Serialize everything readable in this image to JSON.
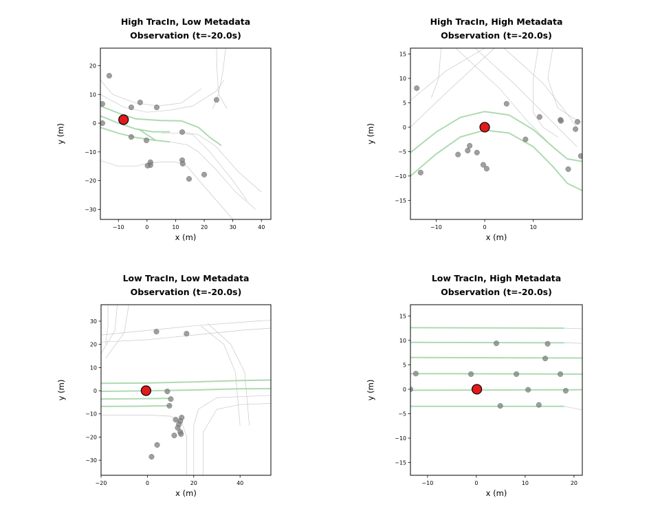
{
  "colors": {
    "ego": "#e31a1c",
    "agent": "#7f7f7f",
    "lane_green": "#9fd4a3",
    "map_line": "#c8c8c8"
  },
  "chart_data": [
    {
      "type": "scatter",
      "title": "High TracIn, Low Metadata\nObservation (t=-20.0s)",
      "xlabel": "x (m)",
      "ylabel": "y (m)",
      "xlim": [
        -16.3,
        43.3
      ],
      "ylim": [
        -33.5,
        26.1
      ],
      "xticks": [
        -10,
        0,
        10,
        20,
        30,
        40
      ],
      "yticks": [
        -30,
        -20,
        -10,
        0,
        10,
        20
      ],
      "ego": [
        -8.2,
        1.2
      ],
      "agents": [
        [
          -13.2,
          16.5
        ],
        [
          -15.6,
          6.7
        ],
        [
          -15.6,
          0
        ],
        [
          -5.5,
          5.5
        ],
        [
          -2.4,
          7.2
        ],
        [
          3.4,
          5.5
        ],
        [
          24.3,
          8.1
        ],
        [
          -5.5,
          -4.8
        ],
        [
          -0.2,
          -6
        ],
        [
          12.3,
          -3.1
        ],
        [
          1.2,
          -13.6
        ],
        [
          1.2,
          -14.6
        ],
        [
          0.2,
          -14.8
        ],
        [
          12.3,
          -12.9
        ],
        [
          12.5,
          -14.1
        ],
        [
          14.7,
          -19.4
        ],
        [
          20,
          -17.9
        ]
      ],
      "green_lanes": [
        [
          [
            -16.3,
            6
          ],
          [
            -10,
            3.5
          ],
          [
            -4,
            1.5
          ],
          [
            5,
            0.9
          ],
          [
            12,
            0.8
          ],
          [
            18,
            -1.5
          ],
          [
            22,
            -5
          ],
          [
            26,
            -7.8
          ]
        ],
        [
          [
            -16.3,
            2.5
          ],
          [
            -10,
            0
          ],
          [
            -4,
            -2
          ],
          [
            2,
            -3
          ],
          [
            8,
            -3
          ]
        ],
        [
          [
            -16.3,
            -1.5
          ],
          [
            -10,
            -3.5
          ],
          [
            -4,
            -5
          ],
          [
            3,
            -6
          ],
          [
            8,
            -6.5
          ]
        ],
        [
          [
            -3,
            -2
          ],
          [
            0,
            -4
          ],
          [
            3,
            -6
          ]
        ]
      ],
      "map_lines": [
        [
          [
            -16.3,
            15
          ],
          [
            -12,
            10
          ],
          [
            -4,
            7
          ],
          [
            4,
            6
          ],
          [
            12,
            7
          ],
          [
            19,
            12
          ]
        ],
        [
          [
            -16.3,
            10
          ],
          [
            -8,
            5.5
          ],
          [
            0,
            3.8
          ],
          [
            8,
            4.5
          ],
          [
            16,
            6
          ],
          [
            24,
            11
          ],
          [
            27,
            15
          ]
        ],
        [
          [
            -16.3,
            -13
          ],
          [
            -10,
            -15
          ],
          [
            -4,
            -15
          ],
          [
            0,
            -14
          ],
          [
            5,
            -13.5
          ],
          [
            10,
            -13.5
          ],
          [
            14,
            -15
          ],
          [
            20,
            -22
          ],
          [
            27,
            -30
          ],
          [
            33,
            -37
          ]
        ],
        [
          [
            5,
            -3.5
          ],
          [
            12,
            -3.5
          ],
          [
            16,
            -4
          ],
          [
            22,
            -10
          ],
          [
            30,
            -20
          ],
          [
            35,
            -27
          ]
        ],
        [
          [
            8,
            -6.5
          ],
          [
            14,
            -7.5
          ],
          [
            18,
            -10
          ],
          [
            24,
            -16
          ],
          [
            31,
            -24
          ],
          [
            38,
            -30
          ]
        ],
        [
          [
            12,
            -3
          ],
          [
            18,
            -4
          ],
          [
            24,
            -8
          ],
          [
            32,
            -17
          ],
          [
            40,
            -24
          ]
        ],
        [
          [
            24.3,
            26
          ],
          [
            24.5,
            18
          ],
          [
            25,
            10
          ],
          [
            28,
            5
          ]
        ],
        [
          [
            27.5,
            26
          ],
          [
            26.5,
            18
          ],
          [
            25,
            10
          ],
          [
            23,
            5
          ]
        ]
      ]
    },
    {
      "type": "scatter",
      "title": "High TracIn, High Metadata\nObservation (t=-20.0s)",
      "xlabel": "x (m)",
      "ylabel": "y (m)",
      "xlim": [
        -15.3,
        20.1
      ],
      "ylim": [
        -18.9,
        16.2
      ],
      "xticks": [
        -10,
        0,
        10
      ],
      "yticks": [
        -15,
        -10,
        -5,
        0,
        5,
        10,
        15
      ],
      "ego": [
        0,
        0
      ],
      "agents": [
        [
          -14,
          8
        ],
        [
          4.5,
          4.8
        ],
        [
          11.3,
          2.1
        ],
        [
          15.6,
          1.5
        ],
        [
          15.7,
          1.3
        ],
        [
          19.1,
          1.1
        ],
        [
          18.7,
          -0.4
        ],
        [
          19.8,
          -5.9
        ],
        [
          8.4,
          -2.5
        ],
        [
          17.2,
          -8.6
        ],
        [
          -13.2,
          -9.3
        ],
        [
          -5.5,
          -5.6
        ],
        [
          -3.1,
          -3.8
        ],
        [
          -3.5,
          -4.8
        ],
        [
          -1.6,
          -5.2
        ],
        [
          -0.3,
          -7.7
        ],
        [
          0.4,
          -8.5
        ]
      ],
      "green_lanes": [
        [
          [
            -15.3,
            -5.2
          ],
          [
            -10,
            -1
          ],
          [
            -5,
            2
          ],
          [
            0,
            3.2
          ],
          [
            5,
            2.5
          ],
          [
            10,
            -0.5
          ],
          [
            14,
            -4
          ],
          [
            17,
            -6.5
          ],
          [
            20.1,
            -7
          ]
        ],
        [
          [
            -15.3,
            -10
          ],
          [
            -10,
            -5.5
          ],
          [
            -5,
            -2
          ],
          [
            0,
            -0.6
          ],
          [
            5,
            -1.2
          ],
          [
            10,
            -4
          ],
          [
            14,
            -8
          ],
          [
            17,
            -11.5
          ],
          [
            20.1,
            -13
          ]
        ]
      ],
      "map_lines": [
        [
          [
            -15.3,
            5.5
          ],
          [
            -8,
            11.5
          ],
          [
            0,
            16.2
          ]
        ],
        [
          [
            -15.3,
            0
          ],
          [
            -8,
            7
          ],
          [
            2,
            16.2
          ]
        ],
        [
          [
            -6,
            16.2
          ],
          [
            3,
            8
          ],
          [
            9,
            1
          ],
          [
            13,
            -3
          ]
        ],
        [
          [
            -2,
            16.2
          ],
          [
            6,
            9
          ],
          [
            12,
            3
          ],
          [
            16,
            -1
          ],
          [
            19,
            -4
          ]
        ],
        [
          [
            4,
            16.2
          ],
          [
            12,
            9
          ],
          [
            16,
            4
          ],
          [
            19,
            0
          ]
        ],
        [
          [
            -9,
            16.2
          ],
          [
            -9.5,
            10
          ],
          [
            -11,
            6
          ]
        ],
        [
          [
            11,
            16.2
          ],
          [
            10,
            10
          ],
          [
            10,
            3
          ],
          [
            12,
            0
          ],
          [
            15,
            -2
          ]
        ],
        [
          [
            14,
            16.2
          ],
          [
            13,
            10
          ],
          [
            15,
            4
          ],
          [
            18,
            2
          ],
          [
            20,
            1
          ]
        ]
      ]
    },
    {
      "type": "scatter",
      "title": "Low TracIn, Low Metadata\nObservation (t=-20.0s)",
      "xlabel": "x (m)",
      "ylabel": "y (m)",
      "xlim": [
        -20,
        53.3
      ],
      "ylim": [
        -36.5,
        37.1
      ],
      "xticks": [
        -20,
        0,
        20,
        40
      ],
      "yticks": [
        -30,
        -20,
        -10,
        0,
        10,
        20,
        30
      ],
      "ego": [
        -0.6,
        0
      ],
      "agents": [
        [
          3.9,
          25.5
        ],
        [
          16.9,
          24.6
        ],
        [
          8.6,
          -0.3
        ],
        [
          10.1,
          -3.6
        ],
        [
          9.5,
          -6.5
        ],
        [
          12.2,
          -12.5
        ],
        [
          14.8,
          -11.6
        ],
        [
          14.2,
          -13.1
        ],
        [
          13.6,
          -14.5
        ],
        [
          13.1,
          -16
        ],
        [
          14.2,
          -17.8
        ],
        [
          14.5,
          -18.7
        ],
        [
          11.6,
          -19.3
        ],
        [
          4.2,
          -23.4
        ],
        [
          1.8,
          -28.5
        ]
      ],
      "green_lanes": [
        [
          [
            -20,
            3.2
          ],
          [
            0,
            3.3
          ],
          [
            20,
            3.8
          ],
          [
            40,
            4.4
          ],
          [
            53.3,
            4.6
          ]
        ],
        [
          [
            -20,
            -0.3
          ],
          [
            0,
            -0.1
          ],
          [
            20,
            0.3
          ],
          [
            40,
            0.8
          ],
          [
            53.3,
            0.9
          ]
        ],
        [
          [
            -20,
            -3.6
          ],
          [
            -5,
            -3.5
          ],
          [
            10,
            -3.3
          ]
        ],
        [
          [
            -20,
            -6.8
          ],
          [
            -5,
            -6.7
          ],
          [
            10,
            -6.5
          ]
        ]
      ],
      "map_lines": [
        [
          [
            -20,
            24
          ],
          [
            0,
            26
          ],
          [
            20,
            28
          ],
          [
            40,
            29.5
          ],
          [
            53.3,
            30.5
          ]
        ],
        [
          [
            -20,
            21
          ],
          [
            0,
            22
          ],
          [
            20,
            24
          ],
          [
            40,
            26
          ],
          [
            53.3,
            27
          ]
        ],
        [
          [
            -20,
            -10.5
          ],
          [
            0,
            -10.5
          ],
          [
            10,
            -11
          ],
          [
            15,
            -14
          ],
          [
            17,
            -20
          ],
          [
            17,
            -36.5
          ]
        ],
        [
          [
            20,
            -36.5
          ],
          [
            20,
            -15
          ],
          [
            22,
            -8
          ],
          [
            30,
            -3
          ],
          [
            53.3,
            -2
          ]
        ],
        [
          [
            24,
            -36.5
          ],
          [
            24,
            -18
          ],
          [
            30,
            -8
          ],
          [
            40,
            -6
          ],
          [
            53.3,
            -5.5
          ]
        ],
        [
          [
            -17,
            37.1
          ],
          [
            -17,
            28
          ],
          [
            -18,
            20
          ]
        ],
        [
          [
            -13,
            37.1
          ],
          [
            -14,
            26
          ],
          [
            -20,
            16
          ]
        ],
        [
          [
            -8,
            37.1
          ],
          [
            -10,
            25
          ],
          [
            -18,
            14
          ]
        ],
        [
          [
            23,
            28
          ],
          [
            33,
            20
          ],
          [
            38,
            8
          ],
          [
            40,
            -15
          ]
        ],
        [
          [
            26,
            29
          ],
          [
            36,
            20
          ],
          [
            42,
            8
          ],
          [
            44,
            -15
          ]
        ]
      ]
    },
    {
      "type": "scatter",
      "title": "Low TracIn, High Metadata\nObservation (t=-20.0s)",
      "xlabel": "x (m)",
      "ylabel": "y (m)",
      "xlim": [
        -13.5,
        21.7
      ],
      "ylim": [
        -17.6,
        17.3
      ],
      "xticks": [
        -10,
        0,
        10,
        20
      ],
      "yticks": [
        -15,
        -10,
        -5,
        0,
        5,
        10,
        15
      ],
      "ego": [
        0.1,
        0
      ],
      "agents": [
        [
          -13.5,
          0
        ],
        [
          -12.4,
          3.2
        ],
        [
          -1.1,
          3.1
        ],
        [
          4.1,
          9.4
        ],
        [
          8.2,
          3.1
        ],
        [
          14.6,
          9.3
        ],
        [
          14.1,
          6.3
        ],
        [
          17.2,
          3.1
        ],
        [
          10.6,
          -0.1
        ],
        [
          18.3,
          -0.3
        ],
        [
          4.9,
          -3.4
        ],
        [
          12.8,
          -3.2
        ]
      ],
      "green_lanes": [
        [
          [
            -13.5,
            12.6
          ],
          [
            18,
            12.5
          ]
        ],
        [
          [
            -13.5,
            9.6
          ],
          [
            18,
            9.5
          ]
        ],
        [
          [
            -13.5,
            6.5
          ],
          [
            21.7,
            6.4
          ]
        ],
        [
          [
            -13.5,
            3.2
          ],
          [
            21.7,
            3.1
          ]
        ],
        [
          [
            -13.5,
            -0.2
          ],
          [
            21.7,
            -0.1
          ]
        ],
        [
          [
            -13.5,
            -3.5
          ],
          [
            18,
            -3.5
          ]
        ]
      ],
      "map_lines": [
        [
          [
            18,
            12.5
          ],
          [
            21.7,
            12.4
          ]
        ],
        [
          [
            18,
            9.5
          ],
          [
            21.7,
            9.4
          ]
        ],
        [
          [
            18,
            -3.5
          ],
          [
            21.7,
            -4.2
          ]
        ]
      ]
    }
  ]
}
